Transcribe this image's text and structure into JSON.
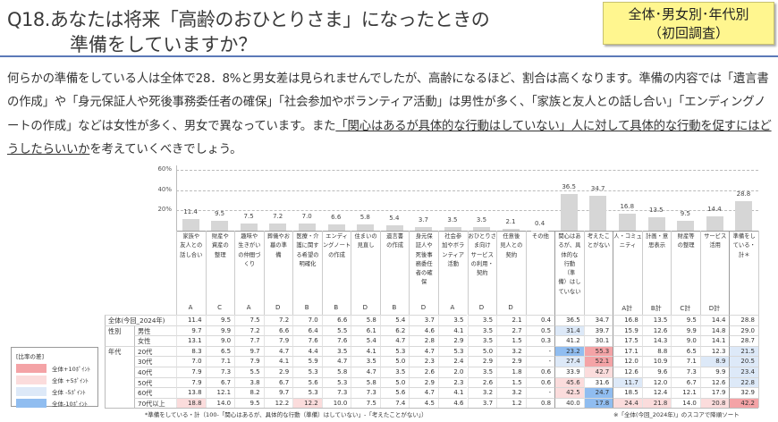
{
  "header": {
    "title_line1": "Q18.あなたは将来「高齢のおひとりさま」になったときの",
    "title_line2": "準備をしていますか？",
    "badge_line1": "全体･男女別･年代別",
    "badge_line2": "（初回調査）"
  },
  "summary": {
    "text": "何らかの準備をしている人は全体で28．8%と男女差は見られませんでしたが、高齢になるほど、割合は高くなります。準備の内容では「遺言書の作成」や「身元保証人や死後事務委任者の確保」「社会参加やボランティア活動」は男性が多く、「家族と友人との話し合い」「エンディングノートの作成」などは女性が多く、男女で異なっています。また",
    "underlined": "「関心はあるが具体的な行動はしていない」人に対して具体的な行動を促すにはどうしたらいいか",
    "tail": "を考えていくべきでしょう。"
  },
  "chart_data": {
    "type": "bar",
    "ylim": [
      0,
      60
    ],
    "yticks": [
      "20%",
      "40%",
      "60%"
    ],
    "grid": true,
    "categories": [
      "家族や\n友人との\n話し合い",
      "財産や\n資産の\n整理",
      "趣味や\n生きがい\nの仲間づ\nくり",
      "葬儀やお\n墓の準\n備",
      "医療・介\n護に関す\nる希望の\n明確化",
      "エンディ\nングノート\nの作成",
      "住まいの\n見直し",
      "遺言書\nの作成",
      "身元保\n証人や\n死後事\n務委任\n者の確\n保",
      "社会参\n加やボラ\nンティア\n活動",
      "おひとりさ\nま向け\nサービス\nの利用・\n契約",
      "任意後\n見人との\n契約",
      "その他",
      "関心はあ\nるが、具\n体的な\n行動\n（準\n備）はし\nていない",
      "考えたこ\nとがない",
      "人・コミュ\nニティ",
      "計画・意\n思表示",
      "財産等\nの整理",
      "サービス\n活用",
      "準備をし\nている・\n計＊"
    ],
    "groups": [
      "A",
      "C",
      "A",
      "D",
      "B",
      "B",
      "D",
      "B",
      "D",
      "A",
      "D",
      "D",
      "",
      "",
      "",
      "A計",
      "B計",
      "C計",
      "D計",
      ""
    ],
    "values": [
      11.4,
      9.5,
      7.5,
      7.2,
      7.0,
      6.6,
      5.8,
      5.4,
      3.7,
      3.5,
      3.5,
      2.1,
      0.4,
      36.5,
      34.7,
      16.8,
      13.5,
      9.5,
      14.4,
      28.8
    ],
    "value_labels": [
      "11.4",
      "9.5",
      "7.5",
      "7.2",
      "7.0",
      "6.6",
      "5.8",
      "5.4",
      "3.7",
      "3.5",
      "3.5",
      "2.1",
      "0.4",
      "36.5",
      "34.7",
      "16.8",
      "13.5",
      "9.5",
      "14.4",
      "28.8"
    ]
  },
  "table": {
    "colors": {
      "plus10": "#f4a3a6",
      "plus5": "#fbdcdc",
      "minus5": "#dde9f8",
      "minus10": "#90bdf0"
    },
    "rows": [
      {
        "group": "全体(今回_2024年)",
        "label": "",
        "values": [
          "11.4",
          "9.5",
          "7.5",
          "7.2",
          "7.0",
          "6.6",
          "5.8",
          "5.4",
          "3.7",
          "3.5",
          "3.5",
          "2.1",
          "0.4",
          "36.5",
          "34.7",
          "16.8",
          "13.5",
          "9.5",
          "14.4",
          "28.8"
        ],
        "hl": [
          0,
          0,
          0,
          0,
          0,
          0,
          0,
          0,
          0,
          0,
          0,
          0,
          0,
          0,
          0,
          0,
          0,
          0,
          0,
          0
        ]
      },
      {
        "group": "性別",
        "label": "男性",
        "values": [
          "9.7",
          "9.9",
          "7.2",
          "6.6",
          "6.4",
          "5.5",
          "6.1",
          "6.2",
          "4.6",
          "4.1",
          "3.5",
          "2.7",
          "0.5",
          "31.4",
          "39.7",
          "15.9",
          "12.6",
          "9.9",
          "14.8",
          "29.0"
        ],
        "hl": [
          0,
          0,
          0,
          0,
          0,
          0,
          0,
          0,
          0,
          0,
          0,
          0,
          0,
          -1,
          0,
          0,
          0,
          0,
          0,
          0
        ]
      },
      {
        "group": "",
        "label": "女性",
        "values": [
          "13.1",
          "9.0",
          "7.7",
          "7.9",
          "7.6",
          "7.6",
          "5.4",
          "4.7",
          "2.8",
          "2.9",
          "3.5",
          "1.5",
          "0.3",
          "41.2",
          "30.1",
          "17.5",
          "14.3",
          "9.0",
          "14.1",
          "28.7"
        ],
        "hl": [
          0,
          0,
          0,
          0,
          0,
          0,
          0,
          0,
          0,
          0,
          0,
          0,
          0,
          0,
          0,
          0,
          0,
          0,
          0,
          0
        ]
      },
      {
        "group": "年代",
        "label": "20代",
        "values": [
          "8.3",
          "6.5",
          "9.7",
          "4.7",
          "4.4",
          "3.5",
          "4.1",
          "5.3",
          "4.7",
          "5.3",
          "5.0",
          "3.2",
          "-",
          "23.2",
          "55.3",
          "17.1",
          "8.8",
          "6.5",
          "12.3",
          "21.5"
        ],
        "hl": [
          0,
          0,
          0,
          0,
          0,
          0,
          0,
          0,
          0,
          0,
          0,
          0,
          0,
          -2,
          2,
          0,
          0,
          0,
          0,
          -1
        ]
      },
      {
        "group": "",
        "label": "30代",
        "values": [
          "7.0",
          "7.1",
          "7.9",
          "4.1",
          "5.9",
          "4.7",
          "3.5",
          "5.0",
          "2.3",
          "2.4",
          "2.9",
          "2.9",
          "-",
          "27.4",
          "52.1",
          "12.0",
          "10.9",
          "7.1",
          "8.9",
          "20.5"
        ],
        "hl": [
          0,
          0,
          0,
          0,
          0,
          0,
          0,
          0,
          0,
          0,
          0,
          0,
          0,
          -1,
          2,
          0,
          0,
          0,
          -1,
          -1
        ]
      },
      {
        "group": "",
        "label": "40代",
        "values": [
          "7.9",
          "7.3",
          "5.5",
          "2.9",
          "5.3",
          "5.8",
          "4.7",
          "3.5",
          "2.6",
          "2.0",
          "3.5",
          "1.8",
          "0.6",
          "33.9",
          "42.7",
          "12.6",
          "9.6",
          "7.3",
          "9.9",
          "23.4"
        ],
        "hl": [
          0,
          0,
          0,
          0,
          0,
          0,
          0,
          0,
          0,
          0,
          0,
          0,
          0,
          0,
          1,
          0,
          0,
          0,
          0,
          -1
        ]
      },
      {
        "group": "",
        "label": "50代",
        "values": [
          "7.9",
          "6.7",
          "3.8",
          "6.7",
          "5.6",
          "5.3",
          "5.8",
          "5.0",
          "2.9",
          "2.3",
          "2.6",
          "1.5",
          "0.6",
          "45.6",
          "31.6",
          "11.7",
          "12.0",
          "6.7",
          "12.6",
          "22.8"
        ],
        "hl": [
          0,
          0,
          0,
          0,
          0,
          0,
          0,
          0,
          0,
          0,
          0,
          0,
          0,
          1,
          0,
          -1,
          0,
          0,
          0,
          -1
        ]
      },
      {
        "group": "",
        "label": "60代",
        "values": [
          "13.8",
          "12.1",
          "8.2",
          "9.7",
          "5.3",
          "7.3",
          "7.3",
          "5.6",
          "4.7",
          "4.1",
          "3.2",
          "3.2",
          "-",
          "42.5",
          "24.7",
          "18.5",
          "12.4",
          "12.1",
          "17.9",
          "32.9"
        ],
        "hl": [
          0,
          0,
          0,
          0,
          0,
          0,
          0,
          0,
          0,
          0,
          0,
          0,
          0,
          1,
          -2,
          0,
          0,
          0,
          0,
          0
        ]
      },
      {
        "group": "",
        "label": "70代以上",
        "values": [
          "18.8",
          "14.0",
          "9.5",
          "12.2",
          "12.2",
          "10.0",
          "7.5",
          "7.4",
          "4.5",
          "4.6",
          "3.7",
          "1.2",
          "0.8",
          "40.0",
          "17.8",
          "24.4",
          "21.8",
          "14.0",
          "20.8",
          "42.2"
        ],
        "hl": [
          1,
          0,
          0,
          0,
          1,
          0,
          0,
          0,
          0,
          0,
          0,
          0,
          0,
          0,
          -2,
          1,
          1,
          0,
          1,
          2
        ]
      }
    ]
  },
  "legend": {
    "title": "[比率の差]",
    "items": [
      "全体+10ﾎﾟｲﾝﾄ",
      "全体 +5ﾎﾟｲﾝﾄ",
      "全体 -5ﾎﾟｲﾝﾄ",
      "全体-10ﾎﾟｲﾝﾄ"
    ]
  },
  "notes": {
    "footnote": "*準備をしている・計（100-「関心はあるが、具体的な行動（準備）はしていない」-「考えたことがない」）",
    "sort": "※「全体(今回_2024年)」のスコアで降順ソート"
  }
}
